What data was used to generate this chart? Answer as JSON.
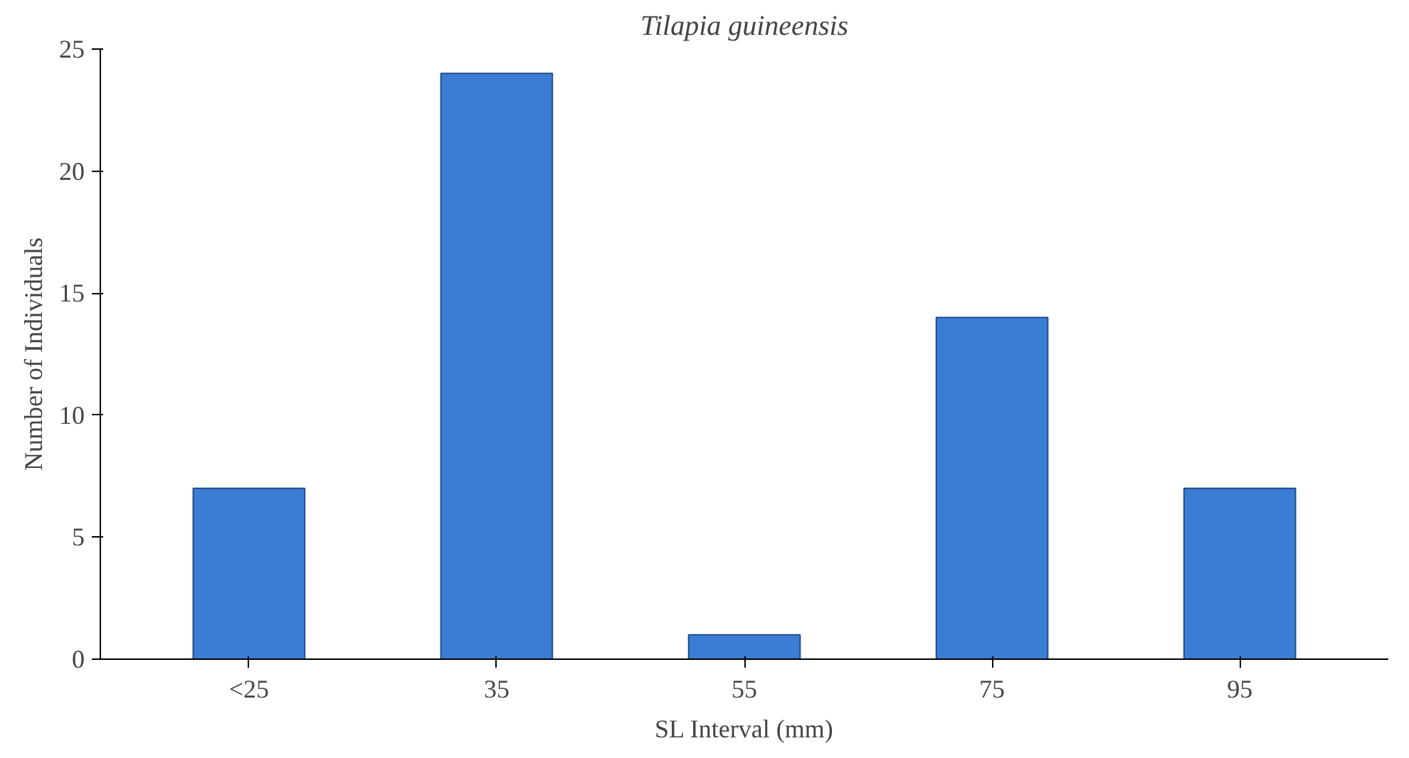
{
  "chart_data": {
    "type": "bar",
    "title": "Tilapia guineensis",
    "xlabel": "SL Interval (mm)",
    "ylabel": "Number of Individuals",
    "categories": [
      "<25",
      "35",
      "55",
      "75",
      "95"
    ],
    "values": [
      7,
      24,
      1,
      14,
      7
    ],
    "color": "#3c7dd4",
    "ylim": [
      0,
      25
    ],
    "yticks": [
      0,
      5,
      10,
      15,
      20,
      25
    ],
    "grid": false
  }
}
